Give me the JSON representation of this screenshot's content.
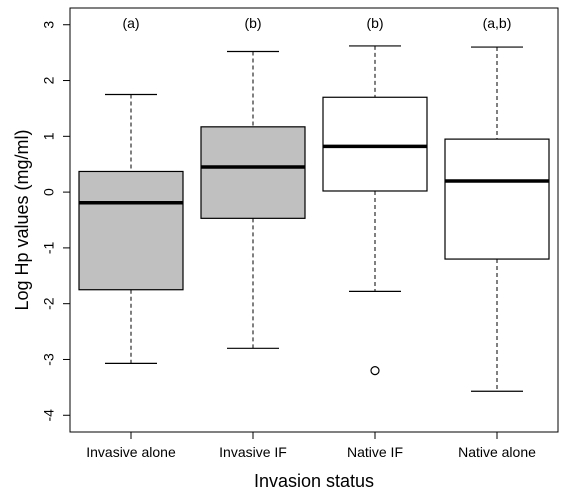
{
  "chart_data": {
    "type": "boxplot",
    "title": "",
    "xlabel": "Invasion status",
    "ylabel": "Log Hp values (mg/ml)",
    "ylim": [
      -4.3,
      3.3
    ],
    "yticks": [
      -4,
      -3,
      -2,
      -1,
      0,
      1,
      2,
      3
    ],
    "grid": false,
    "categories": [
      "Invasive alone",
      "Invasive IF",
      "Native IF",
      "Native alone"
    ],
    "annotations": [
      "(a)",
      "(b)",
      "(b)",
      "(a,b)"
    ],
    "fill_colors": [
      "#c0c0c0",
      "#c0c0c0",
      "#ffffff",
      "#ffffff"
    ],
    "boxes": [
      {
        "whisker_low": -3.07,
        "q1": -1.75,
        "median": -0.19,
        "q3": 0.37,
        "whisker_high": 1.75,
        "outliers": []
      },
      {
        "whisker_low": -2.8,
        "q1": -0.47,
        "median": 0.45,
        "q3": 1.17,
        "whisker_high": 2.52,
        "outliers": []
      },
      {
        "whisker_low": -1.78,
        "q1": 0.02,
        "median": 0.82,
        "q3": 1.7,
        "whisker_high": 2.62,
        "outliers": [
          -3.2
        ]
      },
      {
        "whisker_low": -3.57,
        "q1": -1.2,
        "median": 0.2,
        "q3": 0.95,
        "whisker_high": 2.6,
        "outliers": []
      }
    ]
  }
}
